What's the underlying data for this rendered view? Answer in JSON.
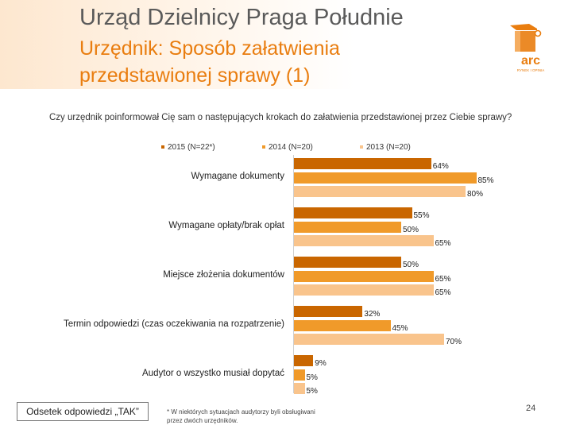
{
  "header": {
    "title": "Urząd Dzielnicy Praga Południe",
    "subtitle": "Urzędnik: Sposób załatwienia przedstawionej sprawy (1)",
    "logo_text": "arc",
    "logo_subtext": "RYNEK I OPINIA"
  },
  "question": "Czy urzędnik poinformował Cię sam o następujących krokach do załatwienia przedstawionej przez Ciebie sprawy?",
  "colors": {
    "s2015": "#c96600",
    "s2014": "#f09a2a",
    "s2013": "#f9c48c",
    "accent": "#e97d0f"
  },
  "chart_data": {
    "type": "bar",
    "orientation": "horizontal",
    "categories": [
      "Wymagane dokumenty",
      "Wymagane opłaty/brak opłat",
      "Miejsce złożenia dokumentów",
      "Termin odpowiedzi (czas oczekiwania na rozpatrzenie)",
      "Audytor o wszystko musiał dopytać"
    ],
    "series": [
      {
        "name": "2015 (N=22*)",
        "values": [
          64,
          55,
          50,
          32,
          9
        ],
        "labels": [
          "64%",
          "55%",
          "50%",
          "32%",
          "9%"
        ]
      },
      {
        "name": "2014 (N=20)",
        "values": [
          85,
          50,
          65,
          45,
          5
        ],
        "labels": [
          "85%",
          "50%",
          "65%",
          "45%",
          "5%"
        ]
      },
      {
        "name": "2013 (N=20)",
        "values": [
          80,
          65,
          65,
          70,
          5
        ],
        "labels": [
          "80%",
          "65%",
          "65%",
          "70%",
          "5%"
        ]
      }
    ],
    "xlim": [
      0,
      100
    ],
    "legend_position": "top"
  },
  "answer_box": "Odsetek odpowiedzi „TAK”",
  "footnote": "* W niektórych sytuacjach audytorzy byli obsługiwani przez dwóch urzędników.",
  "page_number": "24"
}
